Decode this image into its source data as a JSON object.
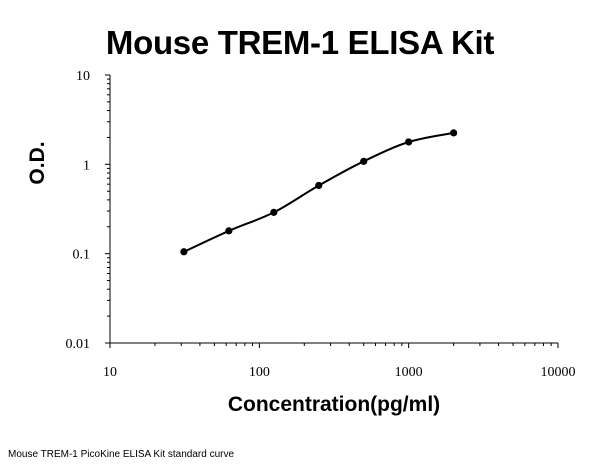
{
  "chart_data": {
    "type": "scatter",
    "title": "Mouse TREM-1 ELISA Kit",
    "xlabel": "Concentration(pg/ml)",
    "ylabel": "O.D.",
    "x_scale": "log",
    "y_scale": "log",
    "xlim": [
      10,
      10000
    ],
    "ylim": [
      0.01,
      10
    ],
    "x_ticks": [
      "10",
      "100",
      "1000",
      "10000"
    ],
    "y_ticks": [
      "10",
      "1",
      "0.1",
      "0.01"
    ],
    "grid": false,
    "legend": "none",
    "curve": "smooth fitted standard curve through points",
    "series": [
      {
        "x": [
          31.25,
          62.5,
          125,
          250,
          500,
          1000,
          2000
        ],
        "y": [
          0.105,
          0.18,
          0.29,
          0.58,
          1.08,
          1.78,
          2.25
        ]
      }
    ],
    "colors": {
      "points": "#000000",
      "curve": "#000000",
      "axis": "#000000"
    }
  },
  "caption": "Mouse TREM-1 PicoKine ELISA Kit standard curve"
}
